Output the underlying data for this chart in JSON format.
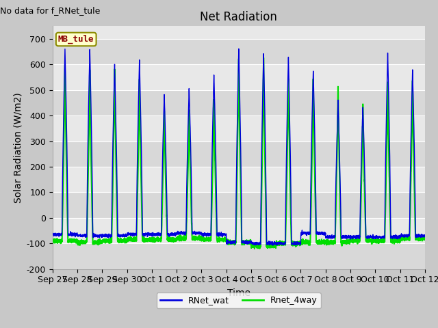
{
  "title": "Net Radiation",
  "xlabel": "Time",
  "ylabel": "Solar Radiation (W/m2)",
  "annotation": "No data for f_RNet_tule",
  "legend_label_box": "MB_tule",
  "series": [
    {
      "label": "RNet_wat",
      "color": "#0000dd"
    },
    {
      "label": "Rnet_4way",
      "color": "#00dd00"
    }
  ],
  "ylim": [
    -200,
    750
  ],
  "yticks": [
    -200,
    -100,
    0,
    100,
    200,
    300,
    400,
    500,
    600,
    700
  ],
  "xtick_labels": [
    "Sep 27",
    "Sep 28",
    "Sep 29",
    "Sep 30",
    "Oct 1",
    "Oct 2",
    "Oct 3",
    "Oct 4",
    "Oct 5",
    "Oct 6",
    "Oct 7",
    "Oct 8",
    "Oct 9",
    "Oct 10",
    "Oct 11",
    "Oct 12"
  ],
  "num_days": 15,
  "fig_bg_color": "#c8c8c8",
  "plot_bg_color": "#e8e8e8",
  "grid_color": "#ffffff",
  "day_peaks_wat": [
    660,
    660,
    600,
    615,
    480,
    505,
    560,
    665,
    645,
    630,
    580,
    455,
    435,
    645,
    580
  ],
  "day_peaks_4way": [
    600,
    580,
    580,
    540,
    420,
    425,
    465,
    620,
    620,
    545,
    545,
    510,
    440,
    535,
    535
  ],
  "night_base_wat": [
    -65,
    -70,
    -70,
    -65,
    -65,
    -60,
    -65,
    -95,
    -100,
    -100,
    -60,
    -75,
    -75,
    -75,
    -70
  ],
  "night_base_4way": [
    -90,
    -95,
    -90,
    -85,
    -85,
    -80,
    -85,
    -95,
    -110,
    -100,
    -95,
    -95,
    -90,
    -90,
    -80
  ],
  "font_size_title": 12,
  "font_size_axis": 10,
  "font_size_tick": 9,
  "font_size_annot": 9,
  "font_size_box": 9
}
